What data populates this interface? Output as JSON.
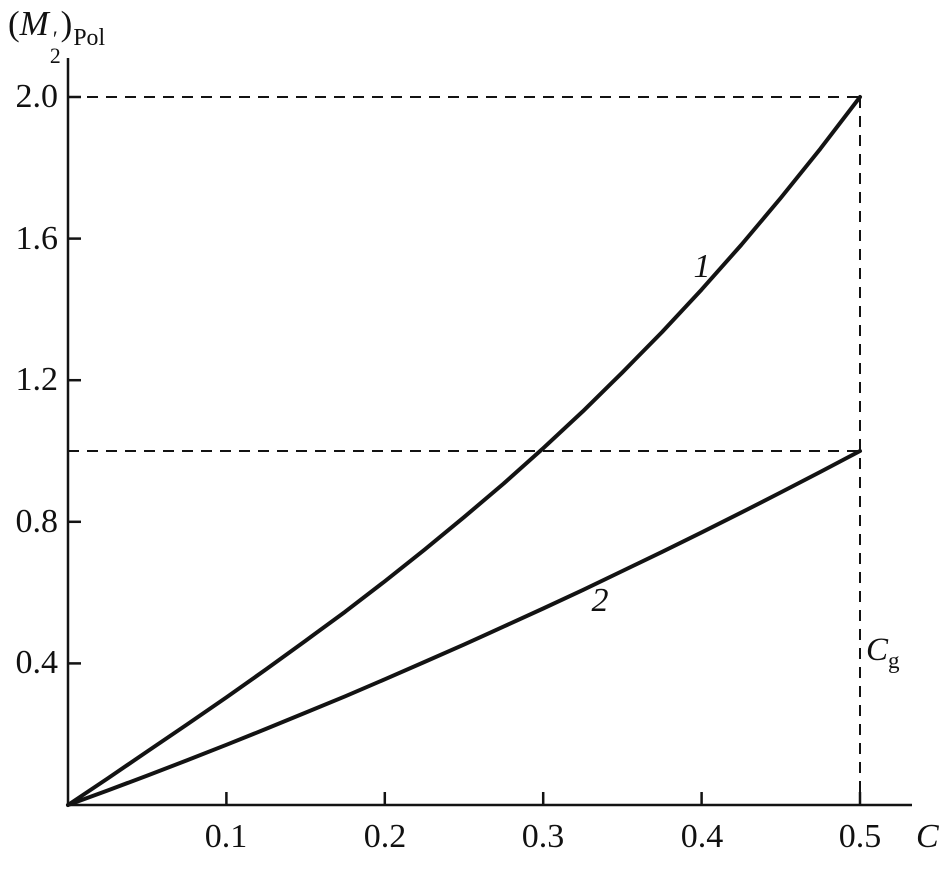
{
  "chart_data": {
    "type": "line",
    "title": "",
    "ylabel": "(M′₂)Pol",
    "xlabel": "C",
    "xlim": [
      0,
      0.53
    ],
    "ylim": [
      0,
      2.1
    ],
    "grid": false,
    "legend_position": "none",
    "x_ticks": [
      0.1,
      0.2,
      0.3,
      0.4,
      0.5
    ],
    "x_tick_labels": [
      "0.1",
      "0.2",
      "0.3",
      "0.4",
      "0.5"
    ],
    "y_ticks": [
      2.0,
      1.6,
      1.2,
      0.8,
      0.4
    ],
    "y_tick_labels": [
      "2.0",
      "1.6",
      "1.2",
      "0.8",
      "0.4"
    ],
    "line_color": "#131313",
    "background": "#ffffff",
    "series": [
      {
        "name": "1",
        "x": [
          0,
          0.025,
          0.05,
          0.075,
          0.1,
          0.125,
          0.15,
          0.175,
          0.2,
          0.225,
          0.25,
          0.275,
          0.3,
          0.325,
          0.35,
          0.375,
          0.4,
          0.425,
          0.45,
          0.475,
          0.5
        ],
        "y": [
          0,
          0.075,
          0.151,
          0.227,
          0.304,
          0.383,
          0.464,
          0.546,
          0.632,
          0.721,
          0.813,
          0.908,
          1.008,
          1.112,
          1.222,
          1.336,
          1.456,
          1.582,
          1.715,
          1.854,
          2.0
        ]
      },
      {
        "name": "2",
        "x": [
          0,
          0.025,
          0.05,
          0.075,
          0.1,
          0.125,
          0.15,
          0.175,
          0.2,
          0.225,
          0.25,
          0.275,
          0.3,
          0.325,
          0.35,
          0.375,
          0.4,
          0.425,
          0.45,
          0.475,
          0.5
        ],
        "y": [
          0,
          0.041,
          0.083,
          0.126,
          0.17,
          0.215,
          0.261,
          0.307,
          0.355,
          0.404,
          0.453,
          0.504,
          0.555,
          0.607,
          0.661,
          0.715,
          0.77,
          0.826,
          0.883,
          0.941,
          1.0
        ]
      }
    ],
    "dashed_lines": [
      {
        "type": "horizontal",
        "y": 2.0,
        "x_from": 0,
        "x_to": 0.5
      },
      {
        "type": "horizontal",
        "y": 1.0,
        "x_from": 0,
        "x_to": 0.5
      },
      {
        "type": "vertical",
        "x": 0.5,
        "y_from": 0,
        "y_to": 2.0
      }
    ],
    "annotations": [
      {
        "text": "1",
        "x": 0.4,
        "y": 1.52
      },
      {
        "text": "2",
        "x": 0.336,
        "y": 0.576
      },
      {
        "text": "Cg",
        "x": 0.515,
        "y": 0.437
      }
    ]
  },
  "labels": {
    "y_axis": {
      "open": "(",
      "symbol": "M",
      "prime": "′",
      "sub": "2",
      "close": ")",
      "subscript": "Pol"
    },
    "cg": {
      "symbol": "C",
      "subscript": "g"
    }
  }
}
